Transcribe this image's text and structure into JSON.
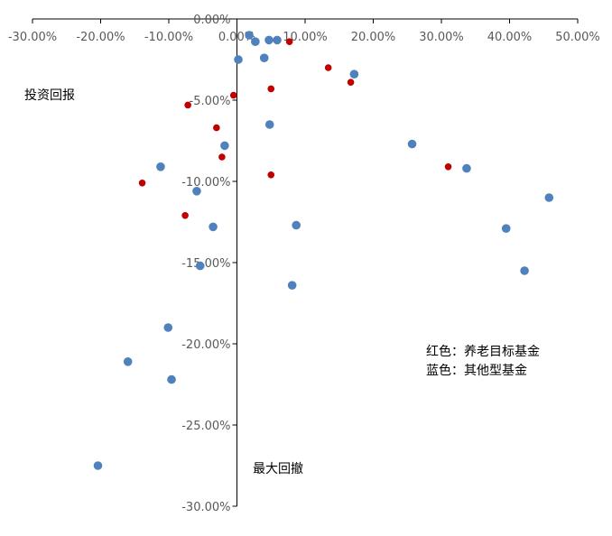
{
  "chart_data": {
    "type": "scatter",
    "title": "",
    "xlabel": "投资回报",
    "ylabel": "最大回撤",
    "xlim": [
      -0.3,
      0.5
    ],
    "ylim": [
      -0.3,
      0.0
    ],
    "x_ticks": [
      "-30.00%",
      "-20.00%",
      "-10.00%",
      "0.00%",
      "10.00%",
      "20.00%",
      "30.00%",
      "40.00%",
      "50.00%"
    ],
    "x_tick_values": [
      -0.3,
      -0.2,
      -0.1,
      0.0,
      0.1,
      0.2,
      0.3,
      0.4,
      0.5
    ],
    "y_ticks": [
      "0.00%",
      "-5.00%",
      "-10.00%",
      "-15.00%",
      "-20.00%",
      "-25.00%",
      "-30.00%"
    ],
    "y_tick_values": [
      0.0,
      -0.05,
      -0.1,
      -0.15,
      -0.2,
      -0.25,
      -0.3
    ],
    "legend_lines": [
      "红色：养老目标基金",
      "蓝色：其他型基金"
    ],
    "grid": false,
    "series": [
      {
        "color": "#c00000",
        "points": [
          [
            -0.005,
            -0.047
          ],
          [
            -0.072,
            -0.053
          ],
          [
            -0.03,
            -0.067
          ],
          [
            -0.022,
            -0.085
          ],
          [
            -0.139,
            -0.101
          ],
          [
            -0.076,
            -0.121
          ],
          [
            0.05,
            -0.043
          ],
          [
            0.05,
            -0.096
          ],
          [
            0.077,
            -0.014
          ],
          [
            0.134,
            -0.03
          ],
          [
            0.167,
            -0.039
          ],
          [
            0.31,
            -0.091
          ]
        ]
      },
      {
        "color": "#4f81bd",
        "points": [
          [
            0.018,
            -0.01
          ],
          [
            0.027,
            -0.014
          ],
          [
            0.047,
            -0.013
          ],
          [
            0.059,
            -0.013
          ],
          [
            0.002,
            -0.025
          ],
          [
            0.04,
            -0.024
          ],
          [
            0.172,
            -0.034
          ],
          [
            0.048,
            -0.065
          ],
          [
            -0.018,
            -0.078
          ],
          [
            -0.112,
            -0.091
          ],
          [
            -0.059,
            -0.106
          ],
          [
            -0.035,
            -0.128
          ],
          [
            -0.054,
            -0.152
          ],
          [
            0.087,
            -0.127
          ],
          [
            0.081,
            -0.164
          ],
          [
            -0.101,
            -0.19
          ],
          [
            -0.16,
            -0.211
          ],
          [
            -0.096,
            -0.222
          ],
          [
            -0.204,
            -0.275
          ],
          [
            0.257,
            -0.077
          ],
          [
            0.337,
            -0.092
          ],
          [
            0.395,
            -0.129
          ],
          [
            0.422,
            -0.155
          ],
          [
            0.458,
            -0.11
          ]
        ]
      }
    ]
  },
  "colors": {
    "axis": "#000000",
    "tick_text": "#595959",
    "red": "#c00000",
    "blue": "#4f81bd"
  }
}
